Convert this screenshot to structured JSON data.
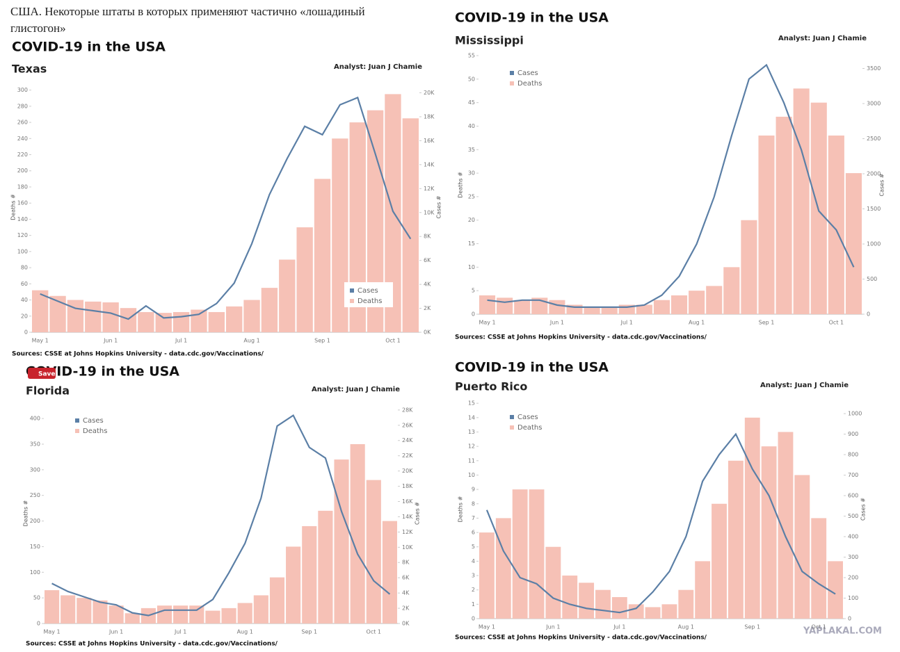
{
  "header": {
    "text_1": "США. Некоторые штаты в которых применяют частично «лошадиный",
    "text_2": "глистогон»"
  },
  "save_button": "Save",
  "watermark": "YAPLAKAL.COM",
  "chart_data": [
    {
      "type": "combo",
      "title": "COVID-19 in the USA",
      "subtitle": "Texas",
      "analyst": "Analyst: Juan J Chamie",
      "ylabel": "Deaths #",
      "y2label": "Cases #",
      "source": "Sources: CSSE at Johns Hopkins University - data.cdc.gov/Vaccinations/",
      "legend": "lower right",
      "categories": [
        "May 1",
        null,
        null,
        null,
        "Jun 1",
        null,
        null,
        null,
        "Jul 1",
        null,
        null,
        null,
        "Aug 1",
        null,
        null,
        null,
        "Sep 1",
        null,
        null,
        null,
        "Oct 1",
        null
      ],
      "series": [
        {
          "name": "Cases",
          "color": "#5b7fa6",
          "axis": "y2",
          "values": [
            3200,
            2600,
            2000,
            1800,
            1600,
            1100,
            2200,
            1200,
            1300,
            1500,
            2400,
            4100,
            7400,
            11500,
            14500,
            17200,
            16500,
            19000,
            19600,
            14900,
            10100,
            7800
          ]
        },
        {
          "name": "Deaths",
          "color": "#f6c1b6",
          "values": [
            52,
            45,
            40,
            38,
            37,
            30,
            25,
            24,
            25,
            28,
            25,
            32,
            40,
            55,
            90,
            130,
            190,
            240,
            260,
            275,
            295,
            265
          ]
        }
      ],
      "ylim": [
        0,
        310
      ],
      "yticks": [
        0,
        20,
        40,
        60,
        80,
        100,
        120,
        140,
        160,
        180,
        200,
        220,
        240,
        260,
        280,
        300
      ],
      "y2lim": [
        0,
        20900
      ],
      "y2ticks": [
        {
          "value": 0,
          "label": "0K"
        },
        {
          "value": 2000,
          "label": "2K"
        },
        {
          "value": 4000,
          "label": "4K"
        },
        {
          "value": 6000,
          "label": "6K"
        },
        {
          "value": 8000,
          "label": "8K"
        },
        {
          "value": 10000,
          "label": "10K"
        },
        {
          "value": 12000,
          "label": "12K"
        },
        {
          "value": 14000,
          "label": "14K"
        },
        {
          "value": 16000,
          "label": "16K"
        },
        {
          "value": 18000,
          "label": "18K"
        },
        {
          "value": 20000,
          "label": "20K"
        }
      ]
    },
    {
      "type": "combo",
      "title": "COVID-19 in the USA",
      "subtitle": "Mississippi",
      "analyst": "Analyst: Juan J Chamie",
      "ylabel": "Deaths #",
      "y2label": "Cases #",
      "source": "Sources: CSSE at Johns Hopkins University - data.cdc.gov/Vaccinations/",
      "legend": "upper left",
      "categories": [
        "May 1",
        null,
        null,
        null,
        "Jun 1",
        null,
        null,
        null,
        "Jul 1",
        null,
        null,
        null,
        "Aug 1",
        null,
        null,
        null,
        "Sep 1",
        null,
        null,
        null,
        "Oct 1",
        null
      ],
      "series": [
        {
          "name": "Cases",
          "color": "#5b7fa6",
          "axis": "y2",
          "values": [
            200,
            170,
            200,
            200,
            130,
            100,
            100,
            100,
            100,
            130,
            270,
            540,
            1000,
            1670,
            2540,
            3350,
            3550,
            3010,
            2340,
            1470,
            1200,
            670
          ]
        },
        {
          "name": "Deaths",
          "color": "#f6c1b6",
          "values": [
            4,
            3.5,
            3,
            3.5,
            3,
            2,
            1.5,
            1.5,
            2,
            2,
            3,
            4,
            5,
            6,
            10,
            20,
            38,
            42,
            48,
            45,
            38,
            30
          ]
        }
      ],
      "ylim": [
        0,
        55
      ],
      "yticks": [
        0,
        5,
        10,
        15,
        20,
        25,
        30,
        35,
        40,
        45,
        50,
        55
      ],
      "y2lim": [
        0,
        3683
      ],
      "y2ticks": [
        0,
        500,
        1000,
        1500,
        2000,
        2500,
        3000,
        3500
      ]
    },
    {
      "type": "combo",
      "title": "COVID-19 in the USA",
      "subtitle": "Florida",
      "analyst": "Analyst: Juan J Chamie",
      "ylabel": "Deaths #",
      "y2label": "Cases #",
      "source": "Sources: CSSE at Johns Hopkins University - data.cdc.gov/Vaccinations/",
      "legend": "upper left",
      "categories": [
        "May 1",
        null,
        null,
        null,
        "Jun 1",
        null,
        null,
        null,
        "Jul 1",
        null,
        null,
        null,
        "Aug 1",
        null,
        null,
        null,
        "Sep 1",
        null,
        null,
        null,
        "Oct 1",
        null
      ],
      "series": [
        {
          "name": "Cases",
          "color": "#5b7fa6",
          "axis": "y2",
          "values": [
            5250,
            4200,
            3500,
            2800,
            2450,
            1400,
            1050,
            1750,
            1750,
            1750,
            3150,
            6650,
            10500,
            16450,
            25900,
            27300,
            23100,
            21700,
            14700,
            9100,
            5600,
            3850
          ]
        },
        {
          "name": "Deaths",
          "color": "#f6c1b6",
          "values": [
            65,
            55,
            50,
            45,
            35,
            20,
            30,
            35,
            35,
            35,
            25,
            30,
            40,
            55,
            90,
            150,
            190,
            220,
            320,
            350,
            280,
            200
          ]
        }
      ],
      "ylim": [
        0,
        430
      ],
      "yticks": [
        0,
        50,
        100,
        150,
        200,
        250,
        300,
        350,
        400
      ],
      "y2lim": [
        0,
        28900
      ],
      "y2ticks": [
        {
          "value": 0,
          "label": "0K"
        },
        {
          "value": 2000,
          "label": "2K"
        },
        {
          "value": 4000,
          "label": "4K"
        },
        {
          "value": 6000,
          "label": "6K"
        },
        {
          "value": 8000,
          "label": "8K"
        },
        {
          "value": 10000,
          "label": "10K"
        },
        {
          "value": 12000,
          "label": "12K"
        },
        {
          "value": 14000,
          "label": "14K"
        },
        {
          "value": 16000,
          "label": "16K"
        },
        {
          "value": 18000,
          "label": "18K"
        },
        {
          "value": 20000,
          "label": "20K"
        },
        {
          "value": 22000,
          "label": "22K"
        },
        {
          "value": 24000,
          "label": "24K"
        },
        {
          "value": 26000,
          "label": "26K"
        },
        {
          "value": 28000,
          "label": "28K"
        }
      ]
    },
    {
      "type": "combo",
      "title": "COVID-19 in the USA",
      "subtitle": "Puerto Rico",
      "analyst": "Analyst: Juan J Chamie",
      "ylabel": "Deaths #",
      "y2label": "Cases #",
      "source": "Sources: CSSE at Johns Hopkins University - data.cdc.gov/Vaccinations/",
      "legend": "upper left",
      "categories": [
        "May 1",
        null,
        null,
        null,
        "Jun 1",
        null,
        null,
        null,
        "Jul 1",
        null,
        null,
        null,
        "Aug 1",
        null,
        null,
        null,
        "Sep 1",
        null,
        null,
        null,
        "Oct 1",
        null
      ],
      "series": [
        {
          "name": "Cases",
          "color": "#5b7fa6",
          "axis": "y2",
          "values": [
            530,
            330,
            200,
            170,
            100,
            70,
            50,
            40,
            30,
            50,
            130,
            230,
            400,
            670,
            800,
            900,
            730,
            600,
            400,
            230,
            170,
            120
          ]
        },
        {
          "name": "Deaths",
          "color": "#f6c1b6",
          "values": [
            6,
            7,
            9,
            9,
            5,
            3,
            2.5,
            2,
            1.5,
            1,
            0.8,
            1,
            2,
            4,
            8,
            11,
            14,
            12,
            13,
            10,
            7,
            4
          ]
        }
      ],
      "ylim": [
        0,
        15.25
      ],
      "yticks": [
        0,
        1,
        2,
        3,
        4,
        5,
        6,
        7,
        8,
        9,
        10,
        11,
        12,
        13,
        14,
        15
      ],
      "y2lim": [
        0,
        1068
      ],
      "y2ticks": [
        0,
        100,
        200,
        300,
        400,
        500,
        600,
        700,
        800,
        900,
        1000
      ]
    }
  ]
}
